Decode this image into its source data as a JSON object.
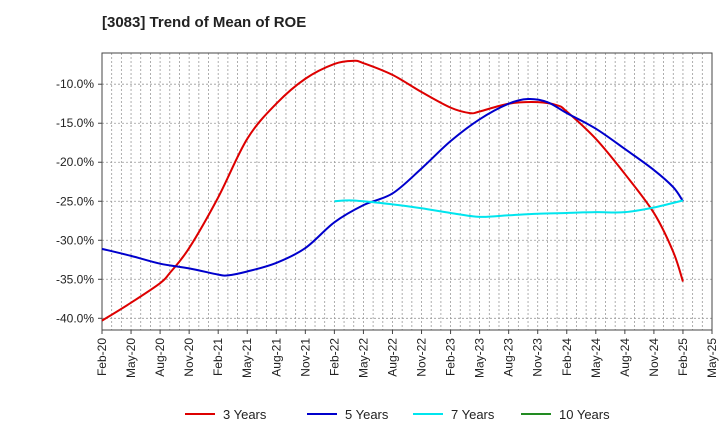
{
  "chart_data": {
    "type": "line",
    "title": "[3083]  Trend of Mean of ROE",
    "xlabel": "",
    "ylabel": "",
    "x_ticks": [
      "Feb-20",
      "May-20",
      "Aug-20",
      "Nov-20",
      "Feb-21",
      "May-21",
      "Aug-21",
      "Nov-21",
      "Feb-22",
      "May-22",
      "Aug-22",
      "Nov-22",
      "Feb-23",
      "May-23",
      "Aug-23",
      "Nov-23",
      "Feb-24",
      "May-24",
      "Aug-24",
      "Nov-24",
      "Feb-25",
      "May-25"
    ],
    "y_ticks": [
      -10,
      -15,
      -20,
      -25,
      -30,
      -35,
      -40
    ],
    "y_tick_labels": [
      "-10.0%",
      "-15.0%",
      "-20.0%",
      "-25.0%",
      "-30.0%",
      "-35.0%",
      "-40.0%"
    ],
    "ylim": [
      -41.5,
      -6.0
    ],
    "grid": true,
    "legend_position": "bottom",
    "series": [
      {
        "name": "3 Years",
        "color": "#dd0000",
        "points": [
          [
            "Feb-20",
            -40.3
          ],
          [
            "May-20",
            -38.0
          ],
          [
            "Aug-20",
            -35.5
          ],
          [
            "Sep-20",
            -34.2
          ],
          [
            "Nov-20",
            -31.0
          ],
          [
            "Feb-21",
            -24.5
          ],
          [
            "May-21",
            -17.0
          ],
          [
            "Aug-21",
            -12.5
          ],
          [
            "Nov-21",
            -9.3
          ],
          [
            "Feb-22",
            -7.4
          ],
          [
            "Apr-22",
            -7.0
          ],
          [
            "May-22",
            -7.3
          ],
          [
            "Aug-22",
            -8.8
          ],
          [
            "Nov-22",
            -11.0
          ],
          [
            "Feb-23",
            -13.0
          ],
          [
            "Apr-23",
            -13.7
          ],
          [
            "May-23",
            -13.5
          ],
          [
            "Aug-23",
            -12.5
          ],
          [
            "Nov-23",
            -12.3
          ],
          [
            "Jan-24",
            -12.7
          ],
          [
            "Feb-24",
            -13.5
          ],
          [
            "May-24",
            -17.0
          ],
          [
            "Aug-24",
            -21.5
          ],
          [
            "Nov-24",
            -26.5
          ],
          [
            "Jan-25",
            -31.5
          ],
          [
            "Feb-25",
            -35.3
          ]
        ]
      },
      {
        "name": "5 Years",
        "color": "#0000cc",
        "points": [
          [
            "Feb-20",
            -31.1
          ],
          [
            "May-20",
            -32.0
          ],
          [
            "Aug-20",
            -33.0
          ],
          [
            "Nov-20",
            -33.6
          ],
          [
            "Feb-21",
            -34.4
          ],
          [
            "Mar-21",
            -34.5
          ],
          [
            "May-21",
            -34.0
          ],
          [
            "Aug-21",
            -32.9
          ],
          [
            "Nov-21",
            -31.0
          ],
          [
            "Feb-22",
            -27.7
          ],
          [
            "May-22",
            -25.5
          ],
          [
            "Aug-22",
            -24.0
          ],
          [
            "Nov-22",
            -20.8
          ],
          [
            "Feb-23",
            -17.3
          ],
          [
            "May-23",
            -14.5
          ],
          [
            "Aug-23",
            -12.5
          ],
          [
            "Oct-23",
            -11.9
          ],
          [
            "Dec-23",
            -12.3
          ],
          [
            "Feb-24",
            -13.7
          ],
          [
            "May-24",
            -15.7
          ],
          [
            "Aug-24",
            -18.3
          ],
          [
            "Nov-24",
            -21.0
          ],
          [
            "Jan-25",
            -23.2
          ],
          [
            "Feb-25",
            -25.0
          ]
        ]
      },
      {
        "name": "7 Years",
        "color": "#00e5ee",
        "points": [
          [
            "Feb-22",
            -25.0
          ],
          [
            "Apr-22",
            -24.9
          ],
          [
            "Aug-22",
            -25.4
          ],
          [
            "Nov-22",
            -25.9
          ],
          [
            "Feb-23",
            -26.5
          ],
          [
            "May-23",
            -27.0
          ],
          [
            "Aug-23",
            -26.8
          ],
          [
            "Nov-23",
            -26.6
          ],
          [
            "Feb-24",
            -26.5
          ],
          [
            "May-24",
            -26.4
          ],
          [
            "Aug-24",
            -26.4
          ],
          [
            "Nov-24",
            -25.8
          ],
          [
            "Feb-25",
            -24.9
          ]
        ]
      },
      {
        "name": "10 Years",
        "color": "#228b22",
        "points": []
      }
    ]
  }
}
